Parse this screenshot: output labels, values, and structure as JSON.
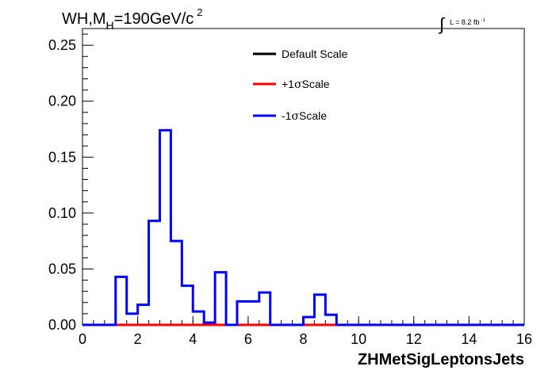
{
  "chart_data": {
    "type": "line",
    "title_main": "WH,M",
    "title_sub": "H",
    "title_rest": "=190GeV/c",
    "title_sup": "2",
    "lumi_label": "L = 8.2 fb",
    "lumi_sup": "-1",
    "xlabel": "ZHMetSigLeptonsJets",
    "ylabel": "",
    "xlim": [
      0,
      16
    ],
    "ylim": [
      0,
      0.265
    ],
    "x_ticks": [
      "0",
      "2",
      "4",
      "6",
      "8",
      "10",
      "12",
      "14",
      "16"
    ],
    "y_ticks": [
      "0.00",
      "0.05",
      "0.10",
      "0.15",
      "0.20",
      "0.25"
    ],
    "legend_position": "top-right",
    "bin_edges": [
      0,
      0.4,
      0.8,
      1.2,
      1.6,
      2.0,
      2.4,
      2.8,
      3.2,
      3.6,
      4.0,
      4.4,
      4.8,
      5.2,
      5.6,
      6.0,
      6.4,
      6.8,
      7.2,
      7.6,
      8.0,
      8.4,
      8.8,
      9.2,
      9.6,
      10.0,
      10.4,
      10.8,
      11.2,
      11.6,
      12.0,
      12.4,
      12.8,
      13.2,
      13.6,
      14.0,
      14.4,
      14.8,
      15.2,
      15.6,
      16.0
    ],
    "series": [
      {
        "name": "Default Scale",
        "label_prefix": "",
        "label_suffix": "Default Scale",
        "color": "#000000",
        "values": [
          0,
          0,
          0,
          0,
          0,
          0,
          0,
          0,
          0,
          0,
          0,
          0,
          0,
          0,
          0,
          0,
          0,
          0,
          0,
          0,
          0,
          0,
          0,
          0,
          0,
          0,
          0,
          0,
          0,
          0,
          0,
          0,
          0,
          0,
          0,
          0,
          0,
          0,
          0,
          0
        ]
      },
      {
        "name": "+1σScale",
        "label_prefix": "+1",
        "label_suffix": "Scale",
        "color": "#ff0000",
        "values": [
          0,
          0,
          0,
          0,
          0,
          0,
          0,
          0,
          0,
          0,
          0,
          0,
          0,
          0,
          0,
          0,
          0,
          0,
          0,
          0,
          0,
          0,
          0,
          0,
          0,
          0,
          0,
          0,
          0,
          0,
          0,
          0,
          0,
          0,
          0,
          0,
          0,
          0,
          0,
          0
        ]
      },
      {
        "name": "-1σScale",
        "label_prefix": "-1",
        "label_suffix": "Scale",
        "color": "#0000ff",
        "values": [
          0,
          0,
          0,
          0.043,
          0.01,
          0.018,
          0.093,
          0.174,
          0.075,
          0.035,
          0.012,
          0.002,
          0.047,
          0.0,
          0.021,
          0.021,
          0.029,
          0.0,
          0.0,
          0.0,
          0.007,
          0.027,
          0.009,
          0.0,
          0.0,
          0.0,
          0.0,
          0.0,
          0.0,
          0.0,
          0.0,
          0.0,
          0.0,
          0.0,
          0.0,
          0.0,
          0.0,
          0.0,
          0.0,
          0.0
        ]
      }
    ]
  }
}
